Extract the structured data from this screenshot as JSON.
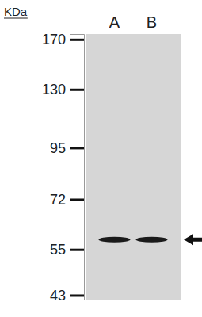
{
  "chart_data": {
    "type": "blot",
    "y_label": "KDa",
    "categories": [
      "A",
      "B"
    ],
    "values": [
      58,
      58
    ],
    "ylim": [
      42,
      175
    ],
    "yticks": [
      43,
      55,
      72,
      95,
      130,
      170
    ],
    "log": "y",
    "tick_labels": true,
    "color": "#1a1a1a"
  }
}
